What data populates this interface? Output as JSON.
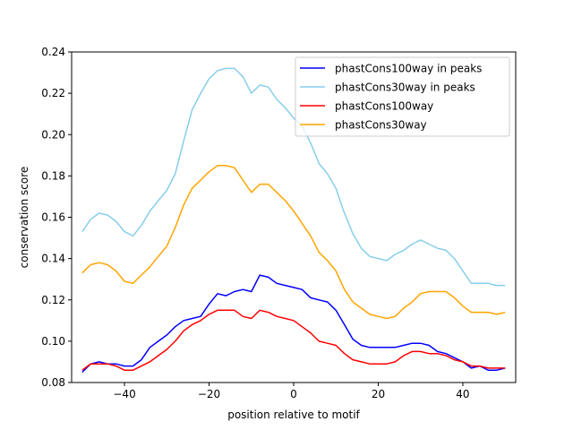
{
  "chart_data": {
    "type": "line",
    "title": "",
    "xlabel": "position relative to motif",
    "ylabel": "conservation score",
    "xlim": [
      -52.5,
      52.5
    ],
    "ylim": [
      0.08,
      0.24
    ],
    "xticks": [
      -40,
      -20,
      0,
      20,
      40
    ],
    "xtick_labels": [
      "−40",
      "−20",
      "0",
      "20",
      "40"
    ],
    "yticks": [
      0.08,
      0.1,
      0.12,
      0.14,
      0.16,
      0.18,
      0.2,
      0.22,
      0.24
    ],
    "ytick_labels": [
      "0.08",
      "0.10",
      "0.12",
      "0.14",
      "0.16",
      "0.18",
      "0.20",
      "0.22",
      "0.24"
    ],
    "grid": false,
    "legend": "upper right",
    "series": [
      {
        "name": "phastCons100way in peaks",
        "color": "#0000ff",
        "x": [
          -50,
          -48,
          -46,
          -44,
          -42,
          -40,
          -38,
          -36,
          -34,
          -32,
          -30,
          -28,
          -26,
          -24,
          -22,
          -20,
          -18,
          -16,
          -14,
          -12,
          -10,
          -8,
          -6,
          -4,
          -2,
          0,
          2,
          4,
          6,
          8,
          10,
          12,
          14,
          16,
          18,
          20,
          22,
          24,
          26,
          28,
          30,
          32,
          34,
          36,
          38,
          40,
          42,
          44,
          46,
          48,
          50
        ],
        "y": [
          0.085,
          0.089,
          0.09,
          0.089,
          0.089,
          0.088,
          0.088,
          0.091,
          0.097,
          0.1,
          0.103,
          0.107,
          0.11,
          0.111,
          0.112,
          0.118,
          0.123,
          0.122,
          0.124,
          0.125,
          0.124,
          0.132,
          0.131,
          0.128,
          0.127,
          0.126,
          0.125,
          0.121,
          0.12,
          0.119,
          0.115,
          0.108,
          0.101,
          0.098,
          0.097,
          0.097,
          0.097,
          0.097,
          0.098,
          0.099,
          0.099,
          0.098,
          0.095,
          0.094,
          0.092,
          0.09,
          0.087,
          0.088,
          0.086,
          0.086,
          0.087
        ]
      },
      {
        "name": "phastCons30way in peaks",
        "color": "#87ceeb",
        "x": [
          -50,
          -48,
          -46,
          -44,
          -42,
          -40,
          -38,
          -36,
          -34,
          -32,
          -30,
          -28,
          -26,
          -24,
          -22,
          -20,
          -18,
          -16,
          -14,
          -12,
          -10,
          -8,
          -6,
          -4,
          -2,
          0,
          2,
          4,
          6,
          8,
          10,
          12,
          14,
          16,
          18,
          20,
          22,
          24,
          26,
          28,
          30,
          32,
          34,
          36,
          38,
          40,
          42,
          44,
          46,
          48,
          50
        ],
        "y": [
          0.153,
          0.159,
          0.162,
          0.161,
          0.158,
          0.153,
          0.151,
          0.156,
          0.163,
          0.168,
          0.173,
          0.181,
          0.197,
          0.212,
          0.22,
          0.227,
          0.231,
          0.232,
          0.232,
          0.228,
          0.22,
          0.224,
          0.223,
          0.217,
          0.213,
          0.208,
          0.204,
          0.196,
          0.186,
          0.181,
          0.174,
          0.162,
          0.152,
          0.145,
          0.141,
          0.14,
          0.139,
          0.142,
          0.144,
          0.147,
          0.149,
          0.147,
          0.145,
          0.144,
          0.14,
          0.134,
          0.128,
          0.128,
          0.128,
          0.127,
          0.127
        ]
      },
      {
        "name": "phastCons100way",
        "color": "#ff0000",
        "x": [
          -50,
          -48,
          -46,
          -44,
          -42,
          -40,
          -38,
          -36,
          -34,
          -32,
          -30,
          -28,
          -26,
          -24,
          -22,
          -20,
          -18,
          -16,
          -14,
          -12,
          -10,
          -8,
          -6,
          -4,
          -2,
          0,
          2,
          4,
          6,
          8,
          10,
          12,
          14,
          16,
          18,
          20,
          22,
          24,
          26,
          28,
          30,
          32,
          34,
          36,
          38,
          40,
          42,
          44,
          46,
          48,
          50
        ],
        "y": [
          0.086,
          0.089,
          0.089,
          0.089,
          0.088,
          0.086,
          0.086,
          0.088,
          0.09,
          0.093,
          0.096,
          0.1,
          0.105,
          0.108,
          0.11,
          0.113,
          0.115,
          0.115,
          0.115,
          0.112,
          0.111,
          0.115,
          0.114,
          0.112,
          0.111,
          0.11,
          0.107,
          0.104,
          0.1,
          0.099,
          0.098,
          0.094,
          0.091,
          0.09,
          0.089,
          0.089,
          0.089,
          0.09,
          0.093,
          0.095,
          0.095,
          0.094,
          0.094,
          0.093,
          0.091,
          0.09,
          0.088,
          0.088,
          0.087,
          0.087,
          0.087
        ]
      },
      {
        "name": "phastCons30way",
        "color": "#ffa500",
        "x": [
          -50,
          -48,
          -46,
          -44,
          -42,
          -40,
          -38,
          -36,
          -34,
          -32,
          -30,
          -28,
          -26,
          -24,
          -22,
          -20,
          -18,
          -16,
          -14,
          -12,
          -10,
          -8,
          -6,
          -4,
          -2,
          0,
          2,
          4,
          6,
          8,
          10,
          12,
          14,
          16,
          18,
          20,
          22,
          24,
          26,
          28,
          30,
          32,
          34,
          36,
          38,
          40,
          42,
          44,
          46,
          48,
          50
        ],
        "y": [
          0.133,
          0.137,
          0.138,
          0.137,
          0.134,
          0.129,
          0.128,
          0.132,
          0.136,
          0.141,
          0.146,
          0.155,
          0.166,
          0.174,
          0.178,
          0.182,
          0.185,
          0.185,
          0.184,
          0.178,
          0.172,
          0.176,
          0.176,
          0.172,
          0.168,
          0.163,
          0.157,
          0.151,
          0.143,
          0.139,
          0.134,
          0.125,
          0.119,
          0.116,
          0.113,
          0.112,
          0.111,
          0.112,
          0.116,
          0.119,
          0.123,
          0.124,
          0.124,
          0.124,
          0.121,
          0.117,
          0.114,
          0.114,
          0.114,
          0.113,
          0.114
        ]
      }
    ]
  }
}
